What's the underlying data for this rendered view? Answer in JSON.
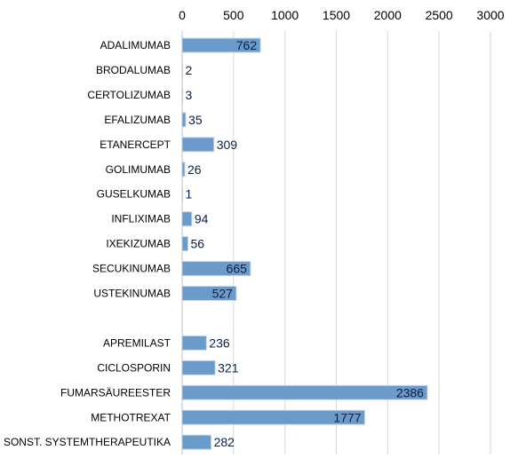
{
  "chart_data": {
    "type": "bar",
    "orientation": "horizontal",
    "xlim": [
      0,
      3000
    ],
    "xticks": [
      0,
      500,
      1000,
      1500,
      2000,
      2500,
      3000
    ],
    "grid": true,
    "axis_position": "top",
    "bar_color": "#6b9bcb",
    "bar_edge_color": "#c8d8ea",
    "label_color": "#0a1f44",
    "grid_color": "#d9d9d9",
    "categories": [
      "ADALIMUMAB",
      "BRODALUMAB",
      "CERTOLIZUMAB",
      "EFALIZUMAB",
      "ETANERCEPT",
      "GOLIMUMAB",
      "GUSELKUMAB",
      "INFLIXIMAB",
      "IXEKIZUMAB",
      "SECUKINUMAB",
      "USTEKINUMAB",
      "",
      "APREMILAST",
      "CICLOSPORIN",
      "FUMARSÄUREESTER",
      "METHOTREXAT",
      "SONST. SYSTEMTHERAPEUTIKA"
    ],
    "values": [
      762,
      2,
      3,
      35,
      309,
      26,
      1,
      94,
      56,
      665,
      527,
      null,
      236,
      321,
      2386,
      1777,
      282
    ]
  }
}
